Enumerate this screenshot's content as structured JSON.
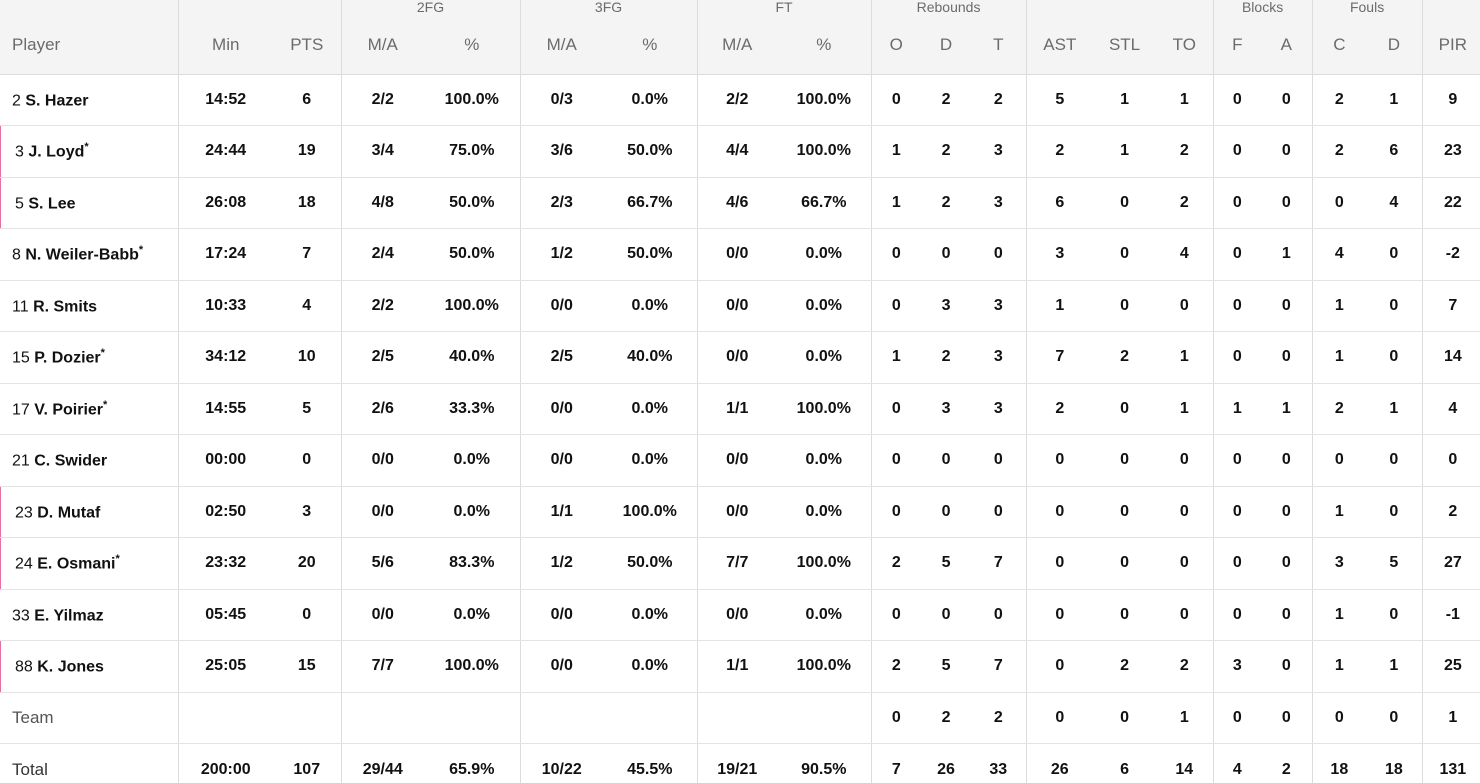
{
  "groups": {
    "fg2": "2FG",
    "fg3": "3FG",
    "ft": "FT",
    "rebounds": "Rebounds",
    "blocks": "Blocks",
    "fouls": "Fouls"
  },
  "columns": [
    "Player",
    "Min",
    "PTS",
    "M/A",
    "%",
    "M/A",
    "%",
    "M/A",
    "%",
    "O",
    "D",
    "T",
    "AST",
    "STL",
    "TO",
    "F",
    "A",
    "C",
    "D",
    "PIR"
  ],
  "players": [
    {
      "num": "2",
      "name": "S. Hazer",
      "starter": "",
      "stats": [
        "14:52",
        "6",
        "2/2",
        "100.0%",
        "0/3",
        "0.0%",
        "2/2",
        "100.0%",
        "0",
        "2",
        "2",
        "5",
        "1",
        "1",
        "0",
        "0",
        "2",
        "1",
        "9"
      ]
    },
    {
      "num": "3",
      "name": "J. Loyd",
      "starter": "*",
      "stats": [
        "24:44",
        "19",
        "3/4",
        "75.0%",
        "3/6",
        "50.0%",
        "4/4",
        "100.0%",
        "1",
        "2",
        "3",
        "2",
        "1",
        "2",
        "0",
        "0",
        "2",
        "6",
        "23"
      ]
    },
    {
      "num": "5",
      "name": "S. Lee",
      "starter": "",
      "stats": [
        "26:08",
        "18",
        "4/8",
        "50.0%",
        "2/3",
        "66.7%",
        "4/6",
        "66.7%",
        "1",
        "2",
        "3",
        "6",
        "0",
        "2",
        "0",
        "0",
        "0",
        "4",
        "22"
      ]
    },
    {
      "num": "8",
      "name": "N. Weiler-Babb",
      "starter": "*",
      "stats": [
        "17:24",
        "7",
        "2/4",
        "50.0%",
        "1/2",
        "50.0%",
        "0/0",
        "0.0%",
        "0",
        "0",
        "0",
        "3",
        "0",
        "4",
        "0",
        "1",
        "4",
        "0",
        "-2"
      ]
    },
    {
      "num": "11",
      "name": "R. Smits",
      "starter": "",
      "stats": [
        "10:33",
        "4",
        "2/2",
        "100.0%",
        "0/0",
        "0.0%",
        "0/0",
        "0.0%",
        "0",
        "3",
        "3",
        "1",
        "0",
        "0",
        "0",
        "0",
        "1",
        "0",
        "7"
      ]
    },
    {
      "num": "15",
      "name": "P. Dozier",
      "starter": "*",
      "stats": [
        "34:12",
        "10",
        "2/5",
        "40.0%",
        "2/5",
        "40.0%",
        "0/0",
        "0.0%",
        "1",
        "2",
        "3",
        "7",
        "2",
        "1",
        "0",
        "0",
        "1",
        "0",
        "14"
      ]
    },
    {
      "num": "17",
      "name": "V. Poirier",
      "starter": "*",
      "stats": [
        "14:55",
        "5",
        "2/6",
        "33.3%",
        "0/0",
        "0.0%",
        "1/1",
        "100.0%",
        "0",
        "3",
        "3",
        "2",
        "0",
        "1",
        "1",
        "1",
        "2",
        "1",
        "4"
      ]
    },
    {
      "num": "21",
      "name": "C. Swider",
      "starter": "",
      "stats": [
        "00:00",
        "0",
        "0/0",
        "0.0%",
        "0/0",
        "0.0%",
        "0/0",
        "0.0%",
        "0",
        "0",
        "0",
        "0",
        "0",
        "0",
        "0",
        "0",
        "0",
        "0",
        "0"
      ]
    },
    {
      "num": "23",
      "name": "D. Mutaf",
      "starter": "",
      "stats": [
        "02:50",
        "3",
        "0/0",
        "0.0%",
        "1/1",
        "100.0%",
        "0/0",
        "0.0%",
        "0",
        "0",
        "0",
        "0",
        "0",
        "0",
        "0",
        "0",
        "1",
        "0",
        "2"
      ]
    },
    {
      "num": "24",
      "name": "E. Osmani",
      "starter": "*",
      "stats": [
        "23:32",
        "20",
        "5/6",
        "83.3%",
        "1/2",
        "50.0%",
        "7/7",
        "100.0%",
        "2",
        "5",
        "7",
        "0",
        "0",
        "0",
        "0",
        "0",
        "3",
        "5",
        "27"
      ]
    },
    {
      "num": "33",
      "name": "E. Yilmaz",
      "starter": "",
      "stats": [
        "05:45",
        "0",
        "0/0",
        "0.0%",
        "0/0",
        "0.0%",
        "0/0",
        "0.0%",
        "0",
        "0",
        "0",
        "0",
        "0",
        "0",
        "0",
        "0",
        "1",
        "0",
        "-1"
      ]
    },
    {
      "num": "88",
      "name": "K. Jones",
      "starter": "",
      "stats": [
        "25:05",
        "15",
        "7/7",
        "100.0%",
        "0/0",
        "0.0%",
        "1/1",
        "100.0%",
        "2",
        "5",
        "7",
        "0",
        "2",
        "2",
        "3",
        "0",
        "1",
        "1",
        "25"
      ]
    }
  ],
  "team": {
    "label": "Team",
    "stats": [
      "",
      "",
      "",
      "",
      "",
      "",
      "",
      "",
      "0",
      "2",
      "2",
      "0",
      "0",
      "1",
      "0",
      "0",
      "0",
      "0",
      "1"
    ]
  },
  "total": {
    "label": "Total",
    "stats": [
      "200:00",
      "107",
      "29/44",
      "65.9%",
      "10/22",
      "45.5%",
      "19/21",
      "90.5%",
      "7",
      "26",
      "33",
      "26",
      "6",
      "14",
      "4",
      "2",
      "18",
      "18",
      "131"
    ]
  },
  "colors": {
    "accent": "#4a3dd6",
    "row_marker": "#e86fa4",
    "header_bg": "#f4f4f4"
  }
}
